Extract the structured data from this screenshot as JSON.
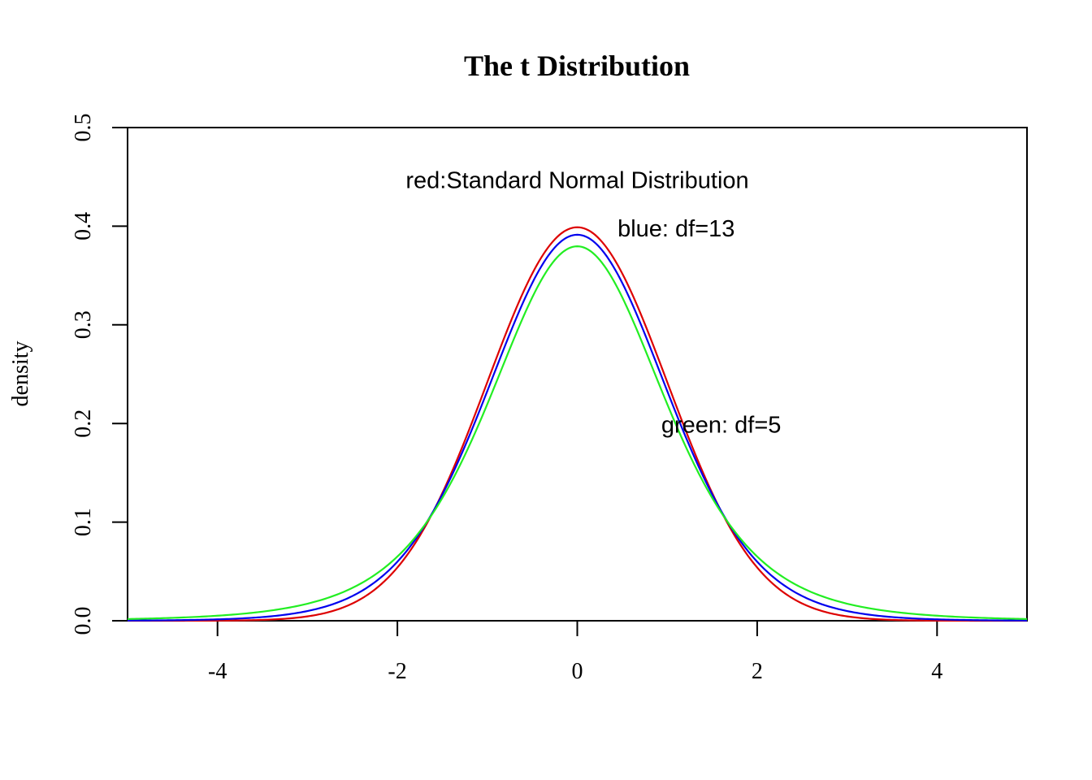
{
  "chart_data": {
    "type": "line",
    "title": "The t Distribution",
    "xlabel": "",
    "ylabel": "density",
    "xlim": [
      -5,
      5
    ],
    "ylim": [
      0,
      0.5
    ],
    "x_ticks": [
      -4,
      -2,
      0,
      2,
      4
    ],
    "x_tick_labels": [
      "-4",
      "-2",
      "0",
      "2",
      "4"
    ],
    "y_ticks": [
      0,
      0.1,
      0.2,
      0.3,
      0.4,
      0.5
    ],
    "y_tick_labels": [
      "0.0",
      "0.1",
      "0.2",
      "0.3",
      "0.4",
      "0.5"
    ],
    "grid": false,
    "series": [
      {
        "color": "#dd0000",
        "distribution": "normal",
        "x": [
          -5,
          -4.5,
          -4,
          -3.5,
          -3,
          -2.5,
          -2,
          -1.5,
          -1,
          -0.5,
          0,
          0.5,
          1,
          1.5,
          2,
          2.5,
          3,
          3.5,
          4,
          4.5,
          5
        ],
        "y": [
          0.0,
          0.0,
          0.0001,
          0.0009,
          0.0044,
          0.0175,
          0.054,
          0.1295,
          0.242,
          0.3521,
          0.3989,
          0.3521,
          0.242,
          0.1295,
          0.054,
          0.0175,
          0.0044,
          0.0009,
          0.0001,
          0.0,
          0.0
        ]
      },
      {
        "color": "#0000ee",
        "distribution": "t",
        "df": 13,
        "x": [
          -5,
          -4.5,
          -4,
          -3.5,
          -3,
          -2.5,
          -2,
          -1.5,
          -1,
          -0.5,
          0,
          0.5,
          1,
          1.5,
          2,
          2.5,
          3,
          3.5,
          4,
          4.5,
          5
        ],
        "y": [
          0.0003,
          0.0008,
          0.0019,
          0.0045,
          0.0107,
          0.0246,
          0.0559,
          0.1244,
          0.232,
          0.3456,
          0.3913,
          0.3456,
          0.232,
          0.1244,
          0.0559,
          0.0246,
          0.0107,
          0.0045,
          0.0019,
          0.0008,
          0.0003
        ]
      },
      {
        "color": "#22ee22",
        "distribution": "t",
        "df": 5,
        "x": [
          -5,
          -4.5,
          -4,
          -3.5,
          -3,
          -2.5,
          -2,
          -1.5,
          -1,
          -0.5,
          0,
          0.5,
          1,
          1.5,
          2,
          2.5,
          3,
          3.5,
          4,
          4.5,
          5
        ],
        "y": [
          0.0018,
          0.0028,
          0.0051,
          0.0099,
          0.0173,
          0.0332,
          0.0651,
          0.1245,
          0.2197,
          0.3279,
          0.3796,
          0.3279,
          0.2197,
          0.1245,
          0.0651,
          0.0332,
          0.0173,
          0.0099,
          0.0051,
          0.0028,
          0.0018
        ]
      }
    ],
    "annotations": [
      {
        "text": "red:Standard Normal Distribution",
        "x": 0,
        "y": 0.447
      },
      {
        "text": "blue: df=13",
        "x": 1.1,
        "y": 0.398
      },
      {
        "text": "green: df=5",
        "x": 1.6,
        "y": 0.199
      }
    ]
  }
}
